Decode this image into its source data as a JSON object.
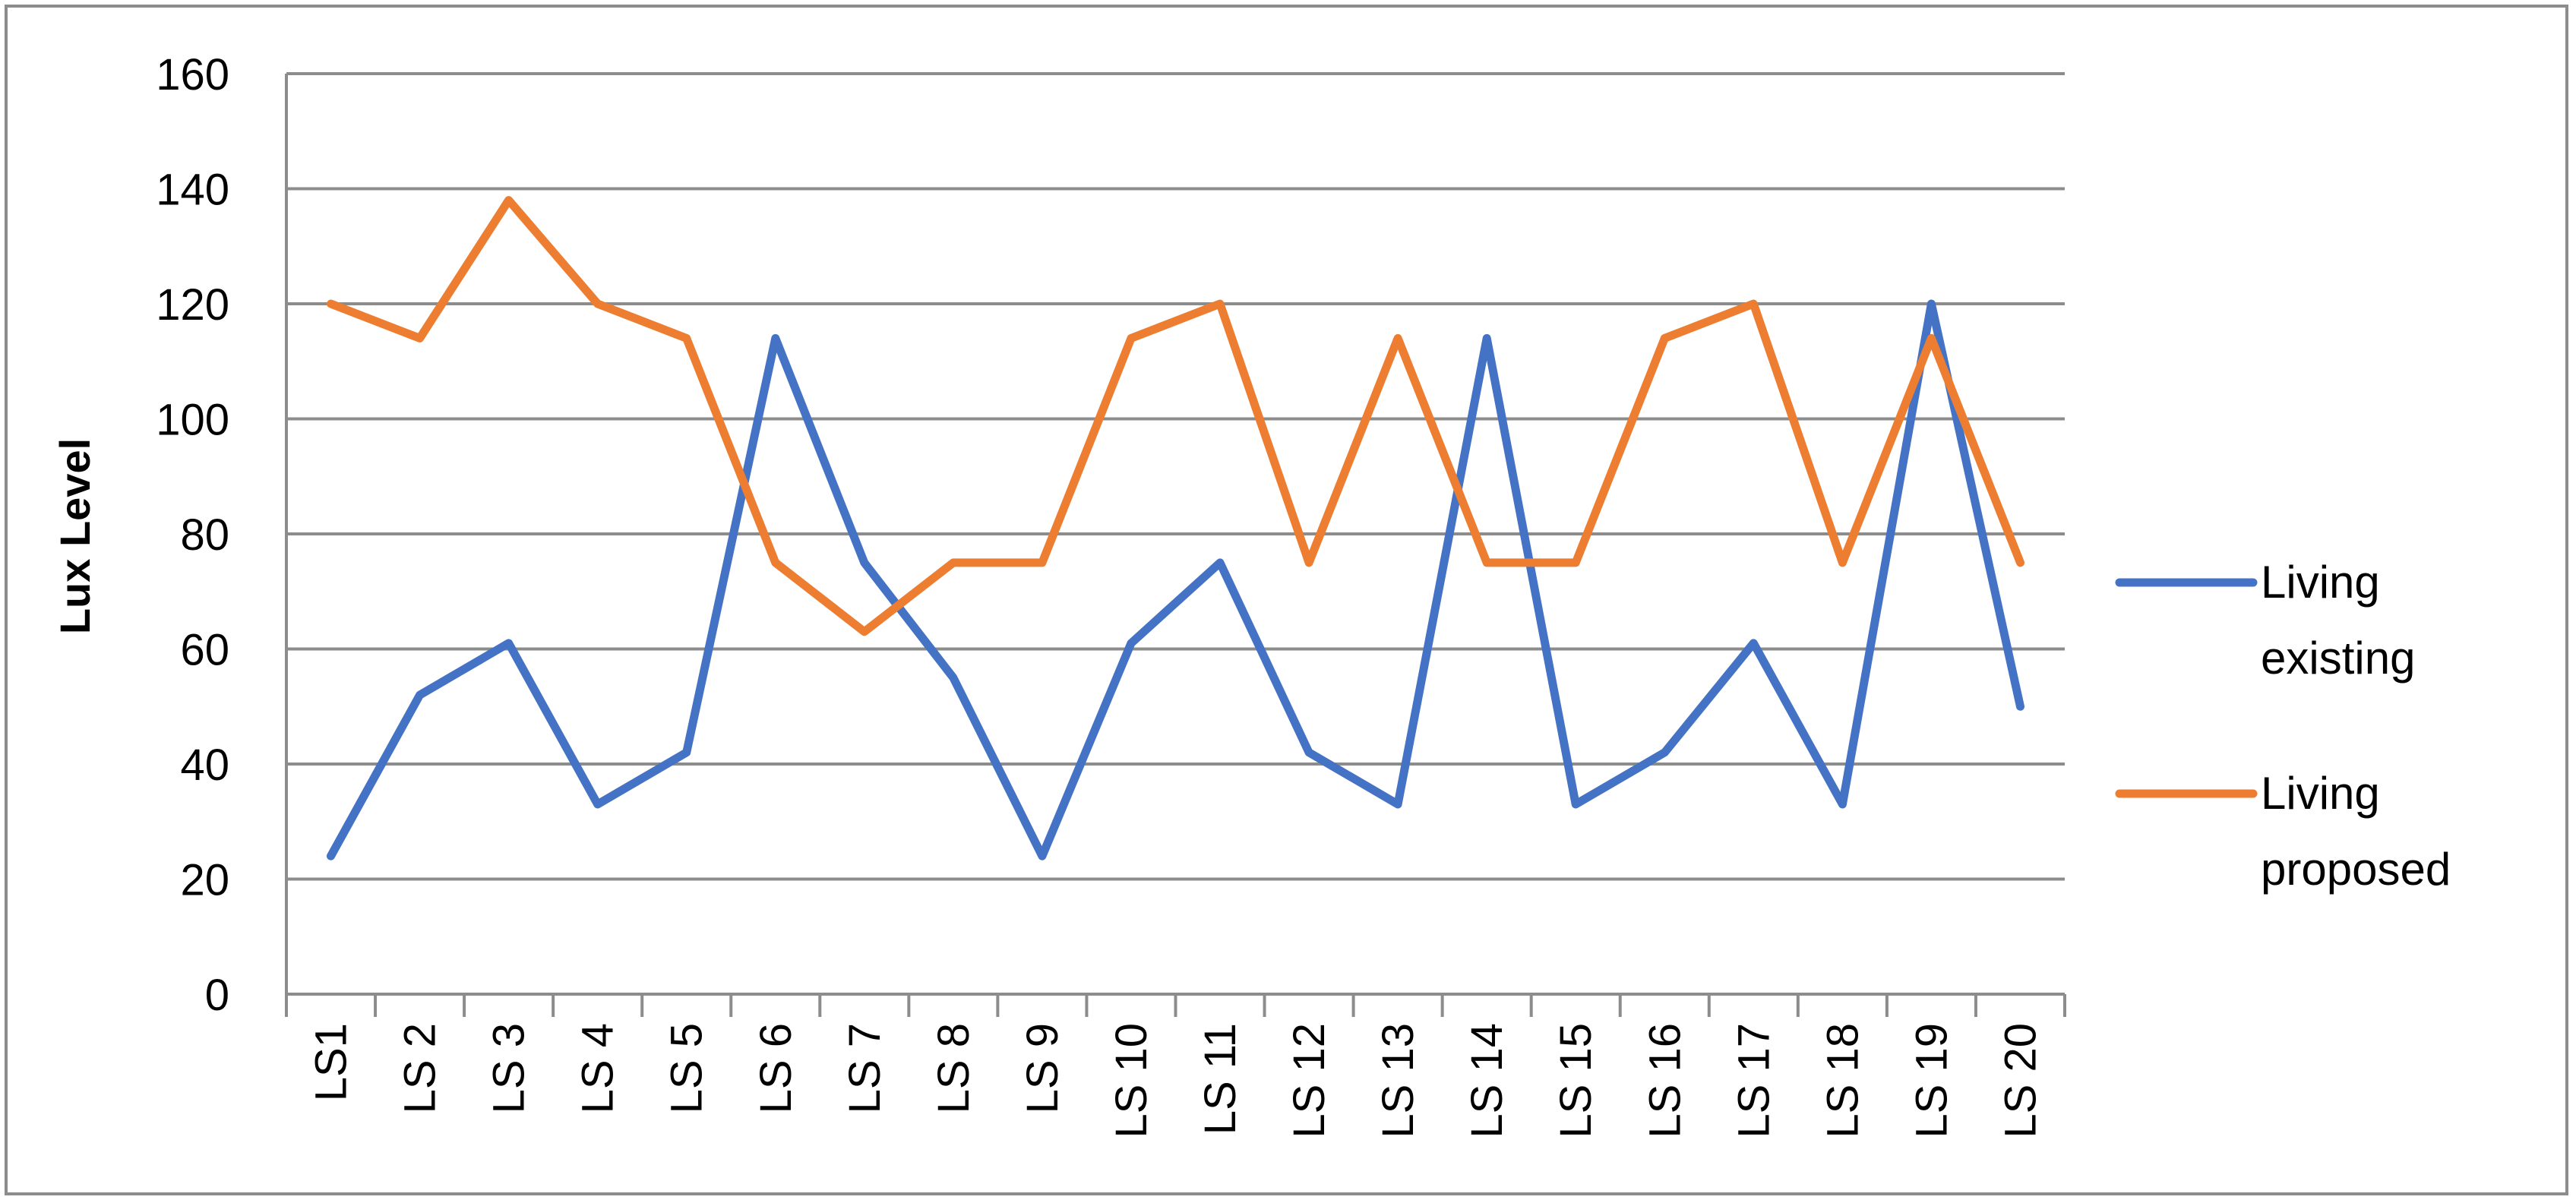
{
  "chart_data": {
    "type": "line",
    "ylabel": "Lux Level",
    "xlabel": "",
    "ylim": [
      0,
      160
    ],
    "yticks": [
      0,
      20,
      40,
      60,
      80,
      100,
      120,
      140,
      160
    ],
    "ytick_labels": [
      "0",
      "20",
      "40",
      "60",
      "80",
      "100",
      "120",
      "140",
      "160"
    ],
    "grid": true,
    "legend_position": "right",
    "categories": [
      "LS1",
      "LS 2",
      "LS 3",
      "LS 4",
      "LS 5",
      "LS 6",
      "LS 7",
      "LS 8",
      "LS 9",
      "LS 10",
      "LS 11",
      "LS 12",
      "LS 13",
      "LS 14",
      "LS 15",
      "LS 16",
      "LS 17",
      "LS 18",
      "LS 19",
      "LS 20"
    ],
    "series": [
      {
        "name": "Living existing",
        "legend_lines": [
          "Living",
          "existing"
        ],
        "color": "#4472c4",
        "values": [
          24,
          52,
          61,
          33,
          42,
          114,
          75,
          55,
          24,
          61,
          75,
          42,
          33,
          114,
          33,
          42,
          61,
          33,
          120,
          50
        ]
      },
      {
        "name": "Living proposed",
        "legend_lines": [
          "Living",
          "proposed"
        ],
        "color": "#ed7d31",
        "values": [
          120,
          114,
          138,
          120,
          114,
          75,
          63,
          75,
          75,
          114,
          120,
          75,
          114,
          75,
          75,
          114,
          120,
          75,
          114,
          75
        ]
      }
    ]
  }
}
